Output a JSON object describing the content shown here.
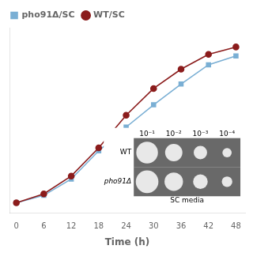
{
  "chart_data": {
    "type": "line",
    "xlabel": "Time (h)",
    "x": [
      0,
      6,
      12,
      18,
      24,
      30,
      36,
      42,
      48
    ],
    "series": [
      {
        "name": "pho91Δ/SC",
        "color": "#7AAFD4",
        "marker": "square",
        "values": [
          0.07,
          0.12,
          0.23,
          0.42,
          0.58,
          0.73,
          0.87,
          1.0,
          1.06
        ]
      },
      {
        "name": "WT/SC",
        "color": "#8B1C1C",
        "marker": "circle",
        "values": [
          0.07,
          0.13,
          0.25,
          0.44,
          0.66,
          0.84,
          0.97,
          1.07,
          1.12
        ]
      }
    ],
    "xlim": [
      -1.5,
      50
    ],
    "xticks": [
      0,
      6,
      12,
      18,
      24,
      30,
      36,
      42,
      48
    ],
    "ylim": [
      0.0,
      1.25
    ],
    "tick_labels": "x",
    "grid": false,
    "legend": "upper left",
    "annotations": {
      "columns": [
        "10⁻¹",
        "10⁻²",
        "10⁻³",
        "10⁻⁴"
      ],
      "rows": [
        "WT",
        "pho91Δ"
      ],
      "caption": "SC media"
    }
  }
}
